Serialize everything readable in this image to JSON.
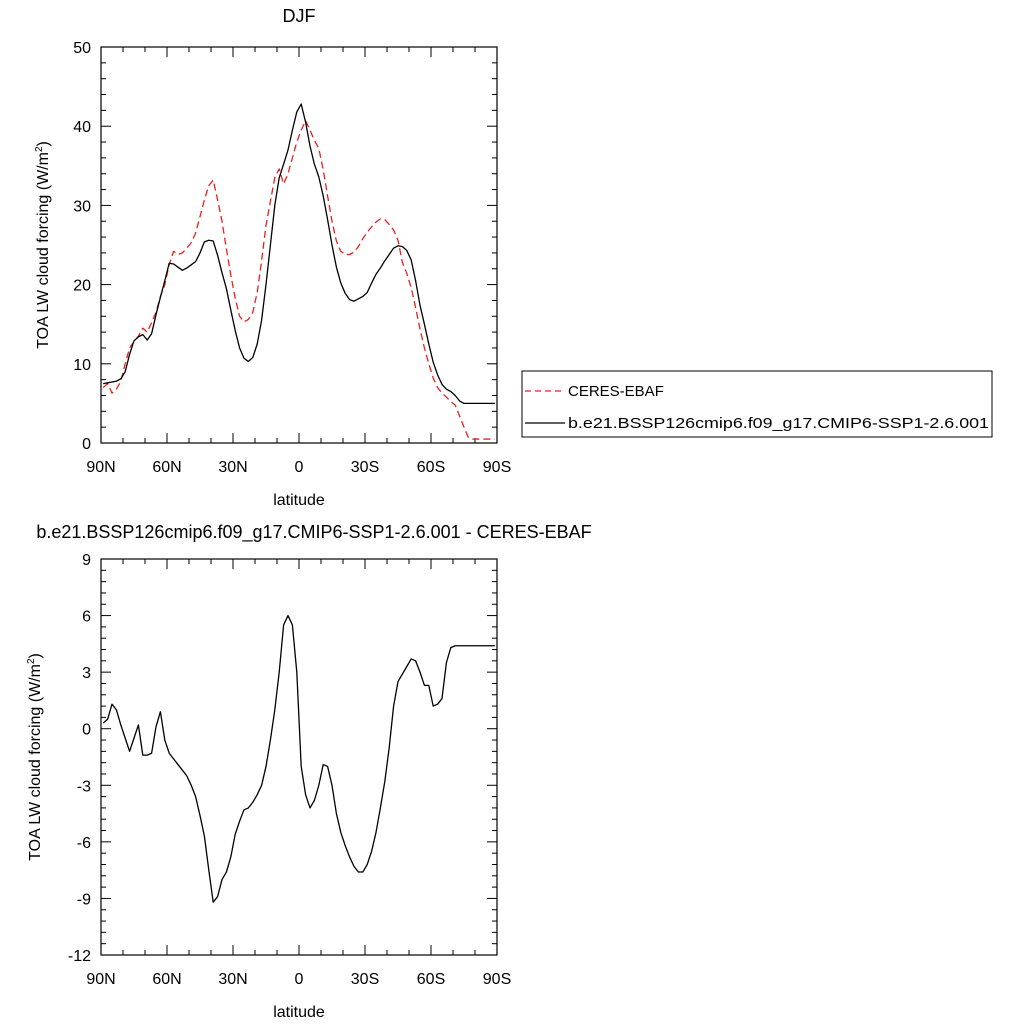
{
  "chart_data": [
    {
      "type": "line",
      "title": "DJF",
      "xlabel": "latitude",
      "ylabel": "TOA LW cloud forcing (W/m",
      "ylabel_sup": "2",
      "ylabel_close": ")",
      "xlim": [
        90,
        -90
      ],
      "ylim": [
        0,
        50
      ],
      "x_ticks": [
        90,
        60,
        30,
        0,
        -30,
        -60,
        -90
      ],
      "x_tick_labels": [
        "90N",
        "60N",
        "30N",
        "0",
        "30S",
        "60S",
        "90S"
      ],
      "y_ticks": [
        0,
        10,
        20,
        30,
        40,
        50
      ],
      "y_tick_labels": [
        "0",
        "10",
        "20",
        "30",
        "40",
        "50"
      ],
      "legend": "right",
      "grid": false,
      "series": [
        {
          "name": "CERES-EBAF",
          "color": "#e8201c",
          "dash": "dashed",
          "x": [
            89,
            87,
            85,
            83,
            81,
            79,
            77,
            75,
            73,
            71,
            69,
            67,
            65,
            63,
            61,
            59,
            57,
            55,
            53,
            51,
            49,
            47,
            45,
            43,
            41,
            39,
            37,
            35,
            33,
            31,
            29,
            27,
            25,
            23,
            21,
            19,
            17,
            15,
            13,
            11,
            9,
            7,
            5,
            3,
            1,
            -1,
            -3,
            -5,
            -7,
            -9,
            -11,
            -13,
            -15,
            -17,
            -19,
            -21,
            -23,
            -25,
            -27,
            -29,
            -31,
            -33,
            -35,
            -37,
            -39,
            -41,
            -43,
            -45,
            -47,
            -49,
            -51,
            -53,
            -55,
            -57,
            -59,
            -61,
            -63,
            -65,
            -67,
            -69,
            -71,
            -73,
            -75,
            -77,
            -79,
            -81,
            -83,
            -85,
            -87,
            -89
          ],
          "values": [
            7.0,
            7.5,
            6.3,
            6.8,
            7.8,
            10.0,
            12.0,
            12.8,
            13.5,
            14.5,
            14.0,
            15.2,
            16.5,
            18.5,
            20.0,
            22.5,
            24.2,
            23.8,
            24.0,
            24.6,
            25.3,
            26.5,
            28.6,
            30.7,
            32.5,
            33.2,
            30.7,
            28.0,
            24.5,
            21.2,
            18.3,
            16.0,
            15.3,
            15.6,
            16.5,
            19.0,
            23.0,
            27.5,
            30.5,
            33.5,
            34.6,
            32.7,
            34.0,
            36.0,
            38.0,
            39.5,
            40.7,
            39.5,
            38.2,
            37.2,
            34.5,
            31.2,
            28.0,
            25.5,
            24.2,
            23.8,
            23.8,
            24.1,
            24.8,
            25.8,
            26.6,
            27.3,
            27.9,
            28.3,
            28.2,
            27.6,
            26.9,
            25.6,
            22.8,
            21.4,
            19.6,
            17.1,
            14.4,
            12.0,
            10.0,
            8.2,
            7.0,
            6.3,
            5.8,
            5.2,
            4.8,
            3.4,
            2.0,
            0.7,
            0.5,
            0.5,
            0.5,
            0.5,
            0.5,
            0.5
          ]
        },
        {
          "name": "b.e21.BSSP126cmip6.f09_g17.CMIP6-SSP1-2.6.001",
          "color": "#000000",
          "dash": "solid",
          "x": [
            89,
            87,
            85,
            83,
            81,
            79,
            77,
            75,
            73,
            71,
            69,
            67,
            65,
            63,
            61,
            59,
            57,
            55,
            53,
            51,
            49,
            47,
            45,
            43,
            41,
            39,
            37,
            35,
            33,
            31,
            29,
            27,
            25,
            23,
            21,
            19,
            17,
            15,
            13,
            11,
            9,
            7,
            5,
            3,
            1,
            -1,
            -3,
            -5,
            -7,
            -9,
            -11,
            -13,
            -15,
            -17,
            -19,
            -21,
            -23,
            -25,
            -27,
            -29,
            -31,
            -33,
            -35,
            -37,
            -39,
            -41,
            -43,
            -45,
            -47,
            -49,
            -51,
            -53,
            -55,
            -57,
            -59,
            -61,
            -63,
            -65,
            -67,
            -69,
            -71,
            -73,
            -75,
            -77,
            -79,
            -81,
            -83,
            -85,
            -87,
            -89
          ],
          "values": [
            7.5,
            7.6,
            7.7,
            7.8,
            8.1,
            9.0,
            11.2,
            12.9,
            13.4,
            13.7,
            13.0,
            13.8,
            16.2,
            18.4,
            20.5,
            22.7,
            22.6,
            22.2,
            21.8,
            22.1,
            22.5,
            22.9,
            24.0,
            25.4,
            25.6,
            25.5,
            23.7,
            21.5,
            19.5,
            16.8,
            14.2,
            12.0,
            10.7,
            10.3,
            10.8,
            12.5,
            15.5,
            20.0,
            25.0,
            30.0,
            33.5,
            35.2,
            37.0,
            39.5,
            41.8,
            42.8,
            40.5,
            37.5,
            35.2,
            33.6,
            31.2,
            28.2,
            25.0,
            22.2,
            20.2,
            18.9,
            18.1,
            17.9,
            18.2,
            18.5,
            19.0,
            20.2,
            21.3,
            22.1,
            23.0,
            23.8,
            24.6,
            24.9,
            24.8,
            24.3,
            23.1,
            20.5,
            17.4,
            15.0,
            12.5,
            10.2,
            8.6,
            7.4,
            6.8,
            6.5,
            6.0,
            5.3,
            5.0,
            5.0,
            5.0,
            5.0,
            5.0,
            5.0,
            5.0,
            5.0
          ]
        }
      ]
    },
    {
      "type": "line",
      "title": "b.e21.BSSP126cmip6.f09_g17.CMIP6-SSP1-2.6.001 - CERES-EBAF",
      "xlabel": "latitude",
      "ylabel": "TOA LW cloud forcing (W/m",
      "ylabel_sup": "2",
      "ylabel_close": ")",
      "xlim": [
        90,
        -90
      ],
      "ylim": [
        -12,
        9
      ],
      "x_ticks": [
        90,
        60,
        30,
        0,
        -30,
        -60,
        -90
      ],
      "x_tick_labels": [
        "90N",
        "60N",
        "30N",
        "0",
        "30S",
        "60S",
        "90S"
      ],
      "y_ticks": [
        -12,
        -9,
        -6,
        -3,
        0,
        3,
        6,
        9
      ],
      "y_tick_labels": [
        "-12",
        "-9",
        "-6",
        "-3",
        "0",
        "3",
        "6",
        "9"
      ],
      "grid": false,
      "series": [
        {
          "color": "#000000",
          "dash": "solid",
          "x": [
            89,
            87,
            85,
            83,
            81,
            79,
            77,
            75,
            73,
            71,
            69,
            67,
            65,
            63,
            61,
            59,
            57,
            55,
            53,
            51,
            49,
            47,
            45,
            43,
            41,
            39,
            37,
            35,
            33,
            31,
            29,
            27,
            25,
            23,
            21,
            19,
            17,
            15,
            13,
            11,
            9,
            7,
            5,
            3,
            1,
            -1,
            -3,
            -5,
            -7,
            -9,
            -11,
            -13,
            -15,
            -17,
            -19,
            -21,
            -23,
            -25,
            -27,
            -29,
            -31,
            -33,
            -35,
            -37,
            -39,
            -41,
            -43,
            -45,
            -47,
            -49,
            -51,
            -53,
            -55,
            -57,
            -59,
            -61,
            -63,
            -65,
            -67,
            -69,
            -71,
            -73,
            -75,
            -77,
            -79,
            -81,
            -83,
            -85,
            -87,
            -89
          ],
          "values": [
            0.3,
            0.5,
            1.3,
            1.0,
            0.2,
            -0.5,
            -1.2,
            -0.5,
            0.2,
            -1.4,
            -1.4,
            -1.3,
            0.1,
            0.9,
            -0.6,
            -1.3,
            -1.6,
            -1.9,
            -2.2,
            -2.5,
            -3.0,
            -3.6,
            -4.6,
            -5.7,
            -7.5,
            -9.2,
            -8.9,
            -8.0,
            -7.6,
            -6.8,
            -5.6,
            -4.9,
            -4.3,
            -4.2,
            -3.9,
            -3.5,
            -3.0,
            -2.0,
            -0.6,
            1.0,
            3.0,
            5.5,
            6.0,
            5.5,
            3.0,
            -2.0,
            -3.5,
            -4.2,
            -3.8,
            -3.0,
            -1.9,
            -2.0,
            -3.0,
            -4.5,
            -5.5,
            -6.2,
            -6.8,
            -7.3,
            -7.6,
            -7.6,
            -7.2,
            -6.5,
            -5.5,
            -4.2,
            -2.8,
            -1.0,
            1.2,
            2.5,
            2.9,
            3.3,
            3.7,
            3.6,
            3.0,
            2.3,
            2.3,
            1.2,
            1.3,
            1.6,
            3.5,
            4.3,
            4.4,
            4.4,
            4.4,
            4.4,
            4.4,
            4.4,
            4.4,
            4.4,
            4.4,
            4.4
          ]
        }
      ]
    }
  ]
}
